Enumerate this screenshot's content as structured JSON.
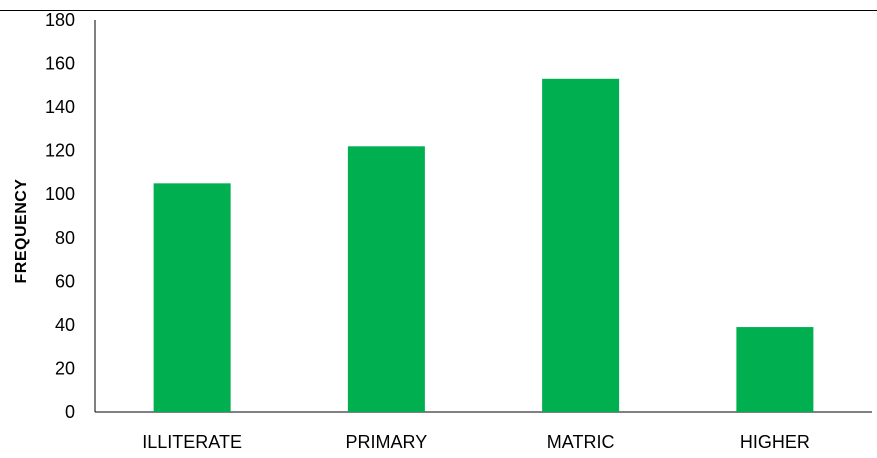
{
  "chart_data": {
    "type": "bar",
    "title": "",
    "xlabel": "",
    "ylabel": "FREQUENCY",
    "categories": [
      "ILLITERATE",
      "PRIMARY",
      "MATRIC",
      "HIGHER"
    ],
    "values": [
      105,
      122,
      153,
      39
    ],
    "ylim": [
      0,
      180
    ],
    "yticks": [
      0,
      20,
      40,
      60,
      80,
      100,
      120,
      140,
      160,
      180
    ],
    "grid": false,
    "legend": "none",
    "bar_color": "#00b050"
  }
}
